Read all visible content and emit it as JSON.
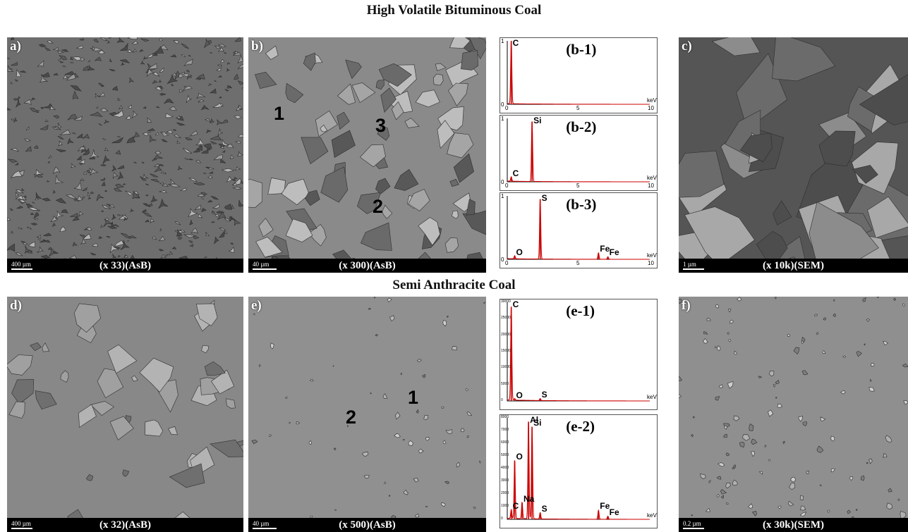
{
  "titles": {
    "top": "High Volatile Bituminous Coal",
    "bottom": "Semi Anthracite Coal"
  },
  "panels": {
    "a": {
      "label": "a)",
      "caption": "(x 33)(AsB)",
      "scale": "400 µm"
    },
    "b": {
      "label": "b)",
      "caption": "(x 300)(AsB)",
      "scale": "40 µm",
      "spots": [
        "1",
        "2",
        "3"
      ]
    },
    "c": {
      "label": "c)",
      "caption": "(x 10k)(SEM)",
      "scale": "1 µm"
    },
    "d": {
      "label": "d)",
      "caption": "(x 32)(AsB)",
      "scale": "400 µm"
    },
    "e": {
      "label": "e)",
      "caption": "(x 500)(AsB)",
      "scale": "40 µm",
      "spots": [
        "1",
        "2"
      ]
    },
    "f": {
      "label": "f)",
      "caption": "(x 30k)(SEM)",
      "scale": "0.2 µm"
    }
  },
  "chart_data": [
    {
      "type": "line",
      "title": "(b-1)",
      "xlabel": "keV",
      "xlim": [
        0,
        10
      ],
      "ylim": [
        0,
        1
      ],
      "x_ticks": [
        "0",
        "5",
        "10"
      ],
      "y_ticks": [
        "0",
        "1"
      ],
      "peaks": [
        {
          "element": "C",
          "x": 0.28,
          "y": 1.0
        }
      ],
      "color": "#cc0000"
    },
    {
      "type": "line",
      "title": "(b-2)",
      "xlabel": "keV",
      "xlim": [
        0,
        10
      ],
      "ylim": [
        0,
        1
      ],
      "x_ticks": [
        "0",
        "5",
        "10"
      ],
      "y_ticks": [
        "0",
        "1"
      ],
      "peaks": [
        {
          "element": "C",
          "x": 0.28,
          "y": 0.07
        },
        {
          "element": "Si",
          "x": 1.74,
          "y": 0.95
        }
      ],
      "color": "#cc0000"
    },
    {
      "type": "line",
      "title": "(b-3)",
      "xlabel": "keV",
      "xlim": [
        0,
        10
      ],
      "ylim": [
        0,
        1
      ],
      "x_ticks": [
        "0",
        "5",
        "10"
      ],
      "y_ticks": [
        "0",
        "1"
      ],
      "peaks": [
        {
          "element": "O",
          "x": 0.52,
          "y": 0.05
        },
        {
          "element": "S",
          "x": 2.31,
          "y": 0.95
        },
        {
          "element": "Fe",
          "x": 6.4,
          "y": 0.1
        },
        {
          "element": "Fe",
          "x": 7.06,
          "y": 0.04
        }
      ],
      "color": "#cc0000"
    },
    {
      "type": "line",
      "title": "(e-1)",
      "xlabel": "keV",
      "xlim": [
        0,
        10
      ],
      "ylim": [
        0,
        30000
      ],
      "y_ticks": [
        "0",
        "5000",
        "10000",
        "15000",
        "20000",
        "25000",
        "30000"
      ],
      "peaks": [
        {
          "element": "C",
          "x": 0.28,
          "y": 28500
        },
        {
          "element": "O",
          "x": 0.52,
          "y": 500
        },
        {
          "element": "S",
          "x": 2.31,
          "y": 600
        }
      ],
      "color": "#cc0000"
    },
    {
      "type": "line",
      "title": "(e-2)",
      "xlabel": "keV",
      "xlim": [
        0,
        10
      ],
      "ylim": [
        0,
        8000
      ],
      "y_ticks": [
        "0",
        "1000",
        "2000",
        "3000",
        "4000",
        "5000",
        "6000",
        "7000",
        "8000"
      ],
      "peaks": [
        {
          "element": "C",
          "x": 0.28,
          "y": 700
        },
        {
          "element": "O",
          "x": 0.52,
          "y": 4600
        },
        {
          "element": "Na",
          "x": 1.04,
          "y": 1300
        },
        {
          "element": "Al",
          "x": 1.49,
          "y": 7700
        },
        {
          "element": "Si",
          "x": 1.74,
          "y": 7300
        },
        {
          "element": "S",
          "x": 2.31,
          "y": 500
        },
        {
          "element": "Fe",
          "x": 6.4,
          "y": 700
        },
        {
          "element": "Fe",
          "x": 7.06,
          "y": 250
        }
      ],
      "color": "#cc0000"
    }
  ]
}
